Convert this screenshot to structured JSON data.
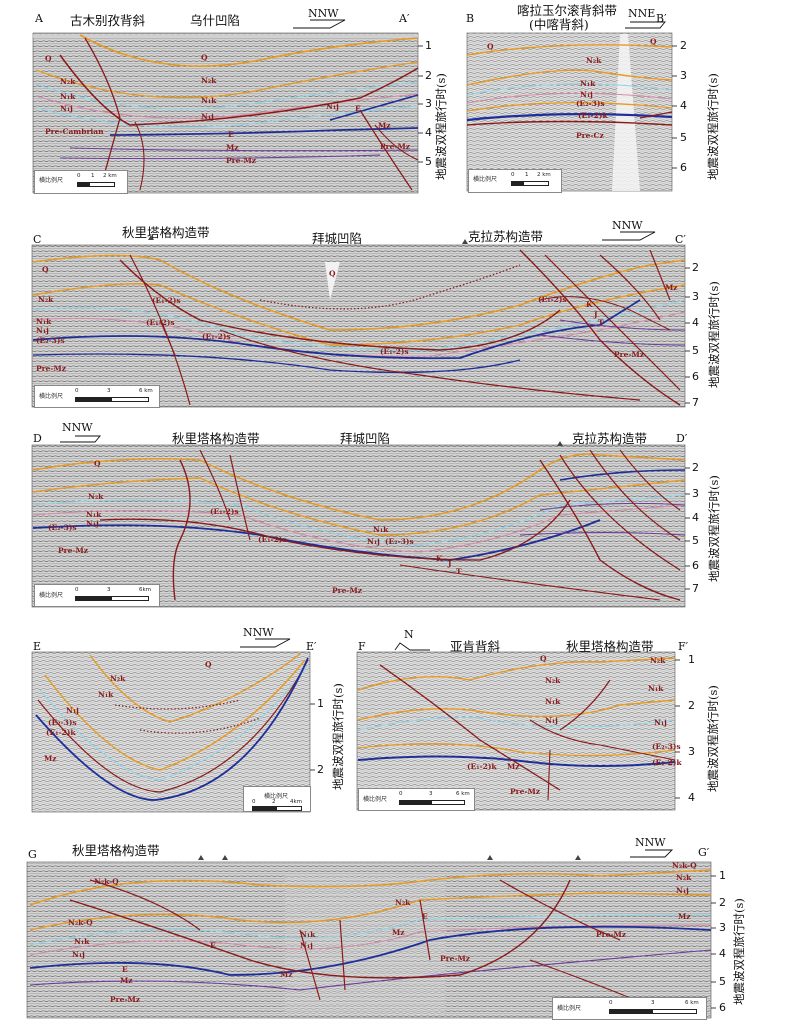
{
  "figure": {
    "description_label": "Seismic cross-section panels A–G"
  },
  "common": {
    "axis_label": "地震波双程旅行时(s)",
    "scale_label": "横比例尺"
  },
  "panels": {
    "a": {
      "left_end": "A",
      "right_end": "A′",
      "orientation": "NNW",
      "titles": [
        "古木别孜背斜",
        "乌什凹陷"
      ],
      "ticks": [
        "1",
        "2",
        "3",
        "4",
        "5"
      ],
      "units": [
        "Q",
        "N₂k",
        "N₁k",
        "N₁j",
        "Q",
        "N₂k",
        "N₁k",
        "N₁j",
        "N₁j",
        "E",
        "Mz",
        "Pre-Mz",
        "Pre-Cambrian",
        "E",
        "Mz",
        "Pre-Mz"
      ],
      "scale": {
        "n0": "0",
        "n1": "1",
        "n2": "2 km"
      }
    },
    "b": {
      "left_end": "B",
      "right_end": "B′",
      "orientation": "NNE",
      "titles": [
        "喀拉玉尔滚背斜带",
        "(中喀背斜)"
      ],
      "ticks": [
        "2",
        "3",
        "4",
        "5",
        "6"
      ],
      "units": [
        "Q",
        "Q",
        "N₂k",
        "N₁k",
        "N₁j",
        "(E₂-3)s",
        "(E₁-2)k",
        "Pre-Cz"
      ],
      "scale": {
        "n0": "0",
        "n1": "1",
        "n2": "2 km"
      }
    },
    "c": {
      "left_end": "C",
      "right_end": "C′",
      "orientation": "NNW",
      "titles": [
        "秋里塔格构造带",
        "拜城凹陷",
        "克拉苏构造带"
      ],
      "ticks": [
        "2",
        "3",
        "4",
        "5",
        "6",
        "7"
      ],
      "units": [
        "Q",
        "N₂k",
        "N₁k",
        "N₁j",
        "(E₂-3)s",
        "Pre-Mz",
        "(E₁-2)s",
        "(E₁-2)s",
        "(E₁-2)s",
        "Q",
        "(E₁-2)s",
        "(E₁-2)s",
        "K",
        "J",
        "T",
        "Pre-Mz",
        "Mz"
      ],
      "scale": {
        "n0": "0",
        "n1": "3",
        "n2": "6 km"
      }
    },
    "d": {
      "left_end": "D",
      "right_end": "D′",
      "orientation": "NNW",
      "titles": [
        "秋里塔格构造带",
        "拜城凹陷",
        "克拉苏构造带"
      ],
      "ticks": [
        "2",
        "3",
        "4",
        "5",
        "6",
        "7"
      ],
      "units": [
        "Q",
        "N₂k",
        "N₁k",
        "N₁j",
        "(E₂-3)s",
        "Pre-Mz",
        "(E₁-2)s",
        "(E₁-2)s",
        "N₁k",
        "N₁j",
        "(E₂-3)s",
        "K",
        "J",
        "T",
        "Pre-Mz"
      ],
      "scale": {
        "n0": "0",
        "n1": "3",
        "n2": "6km"
      }
    },
    "e": {
      "left_end": "E",
      "right_end": "E′",
      "orientation": "NNW",
      "ticks": [
        "1",
        "2"
      ],
      "units": [
        "Q",
        "N₂k",
        "N₁k",
        "N₁j",
        "(E₂-3)s",
        "(E₁-2)k",
        "Mz"
      ],
      "scale": {
        "n0": "0",
        "n1": "2",
        "n2": "4km"
      }
    },
    "f": {
      "left_end": "F",
      "right_end": "F′",
      "orientation": "N",
      "titles": [
        "亚肯背斜",
        "秋里塔格构造带"
      ],
      "ticks": [
        "1",
        "2",
        "3",
        "4"
      ],
      "units": [
        "Q",
        "N₂k",
        "N₁k",
        "N₁j",
        "N₂k",
        "N₁k",
        "N₁j",
        "(E₂-3)s",
        "(E₁-2)k",
        "(E₁-2)k",
        "Mz",
        "Pre-Mz"
      ],
      "scale": {
        "n0": "0",
        "n1": "3",
        "n2": "6 km"
      }
    },
    "g": {
      "left_end": "G",
      "right_end": "G′",
      "orientation": "NNW",
      "titles": [
        "秋里塔格构造带"
      ],
      "ticks": [
        "1",
        "2",
        "3",
        "4",
        "5",
        "6"
      ],
      "units": [
        "N₂k-Q",
        "N₂k-Q",
        "N₁k",
        "N₁j",
        "N₂k",
        "N₁k",
        "N₁j",
        "E",
        "E",
        "Mz",
        "Mz",
        "Pre-Mz",
        "Pre-Mz",
        "E",
        "Mz",
        "N₂k-Q",
        "N₂k",
        "N₁j",
        "Pre-Mz",
        "Mz"
      ],
      "scale": {
        "n0": "0",
        "n1": "3",
        "n2": "6 km"
      }
    }
  },
  "colors": {
    "fault": "#8b1a1a",
    "orange": "#e69a22",
    "blue": "#1f2f9a",
    "purple": "#6f3c9c",
    "cyan": "#8fd3e8"
  }
}
